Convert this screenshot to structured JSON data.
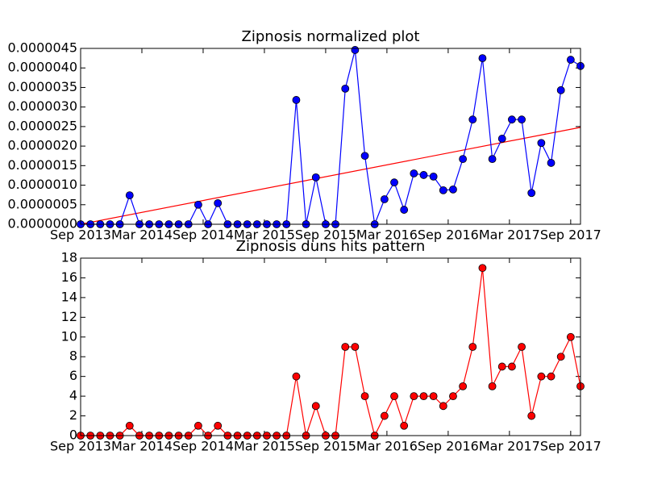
{
  "chart_data": [
    {
      "type": "line",
      "title": "Zipnosis normalized plot",
      "xlim": [
        0,
        51
      ],
      "xticks": [
        {
          "value": 0,
          "label": "Sep 2013"
        },
        {
          "value": 6.25,
          "label": "Mar 2014"
        },
        {
          "value": 12.5,
          "label": "Sep 2014"
        },
        {
          "value": 18.75,
          "label": "Mar 2015"
        },
        {
          "value": 25,
          "label": "Sep 2015"
        },
        {
          "value": 31.25,
          "label": "Mar 2016"
        },
        {
          "value": 37.5,
          "label": "Sep 2016"
        },
        {
          "value": 43.75,
          "label": "Mar 2017"
        },
        {
          "value": 50,
          "label": "Sep 2017"
        }
      ],
      "ylim": [
        0,
        4.5e-06
      ],
      "yticks": [
        {
          "value": 0,
          "label": "0.0000000"
        },
        {
          "value": 5e-07,
          "label": "0.0000005"
        },
        {
          "value": 1e-06,
          "label": "0.0000010"
        },
        {
          "value": 1.5e-06,
          "label": "0.0000015"
        },
        {
          "value": 2e-06,
          "label": "0.0000020"
        },
        {
          "value": 2.5e-06,
          "label": "0.0000025"
        },
        {
          "value": 3e-06,
          "label": "0.0000030"
        },
        {
          "value": 3.5e-06,
          "label": "0.0000035"
        },
        {
          "value": 4e-06,
          "label": "0.0000040"
        },
        {
          "value": 4.5e-06,
          "label": "0.0000045"
        }
      ],
      "series": [
        {
          "color": "#0000ff",
          "values": [
            0,
            0,
            0,
            0,
            0,
            7.4e-07,
            0,
            0,
            0,
            0,
            0,
            0,
            5e-07,
            0,
            5.4e-07,
            0,
            0,
            0,
            0,
            0,
            0,
            0,
            3.18e-06,
            0,
            1.2e-06,
            0,
            0,
            3.47e-06,
            4.46e-06,
            1.75e-06,
            0,
            6.4e-07,
            1.07e-06,
            3.7e-07,
            1.3e-06,
            1.26e-06,
            1.22e-06,
            8.7e-07,
            8.9e-07,
            1.67e-06,
            2.68e-06,
            4.25e-06,
            1.67e-06,
            2.19e-06,
            2.68e-06,
            2.68e-06,
            8e-07,
            2.08e-06,
            1.57e-06,
            3.43e-06,
            4.21e-06,
            4.05e-06
          ]
        }
      ],
      "trend_line": {
        "color": "#ff0000",
        "values": [
          0,
          2.48e-06
        ]
      }
    },
    {
      "type": "line",
      "title": "Zipnosis duns hits pattern",
      "xlim": [
        0,
        51
      ],
      "xticks": [
        {
          "value": 0,
          "label": "Sep 2013"
        },
        {
          "value": 6.25,
          "label": "Mar 2014"
        },
        {
          "value": 12.5,
          "label": "Sep 2014"
        },
        {
          "value": 18.75,
          "label": "Mar 2015"
        },
        {
          "value": 25,
          "label": "Sep 2015"
        },
        {
          "value": 31.25,
          "label": "Mar 2016"
        },
        {
          "value": 37.5,
          "label": "Sep 2016"
        },
        {
          "value": 43.75,
          "label": "Mar 2017"
        },
        {
          "value": 50,
          "label": "Sep 2017"
        }
      ],
      "ylim": [
        0,
        18
      ],
      "yticks": [
        0,
        2,
        4,
        6,
        8,
        10,
        12,
        14,
        16,
        18
      ],
      "series": [
        {
          "color": "#ff0000",
          "values": [
            0,
            0,
            0,
            0,
            0,
            1,
            0,
            0,
            0,
            0,
            0,
            0,
            1,
            0,
            1,
            0,
            0,
            0,
            0,
            0,
            0,
            0,
            6,
            0,
            3,
            0,
            0,
            9,
            9,
            4,
            0,
            2,
            4,
            1,
            4,
            4,
            4,
            3,
            4,
            5,
            9,
            17,
            5,
            7,
            7,
            9,
            2,
            6,
            6,
            8,
            10,
            5
          ]
        }
      ]
    }
  ]
}
